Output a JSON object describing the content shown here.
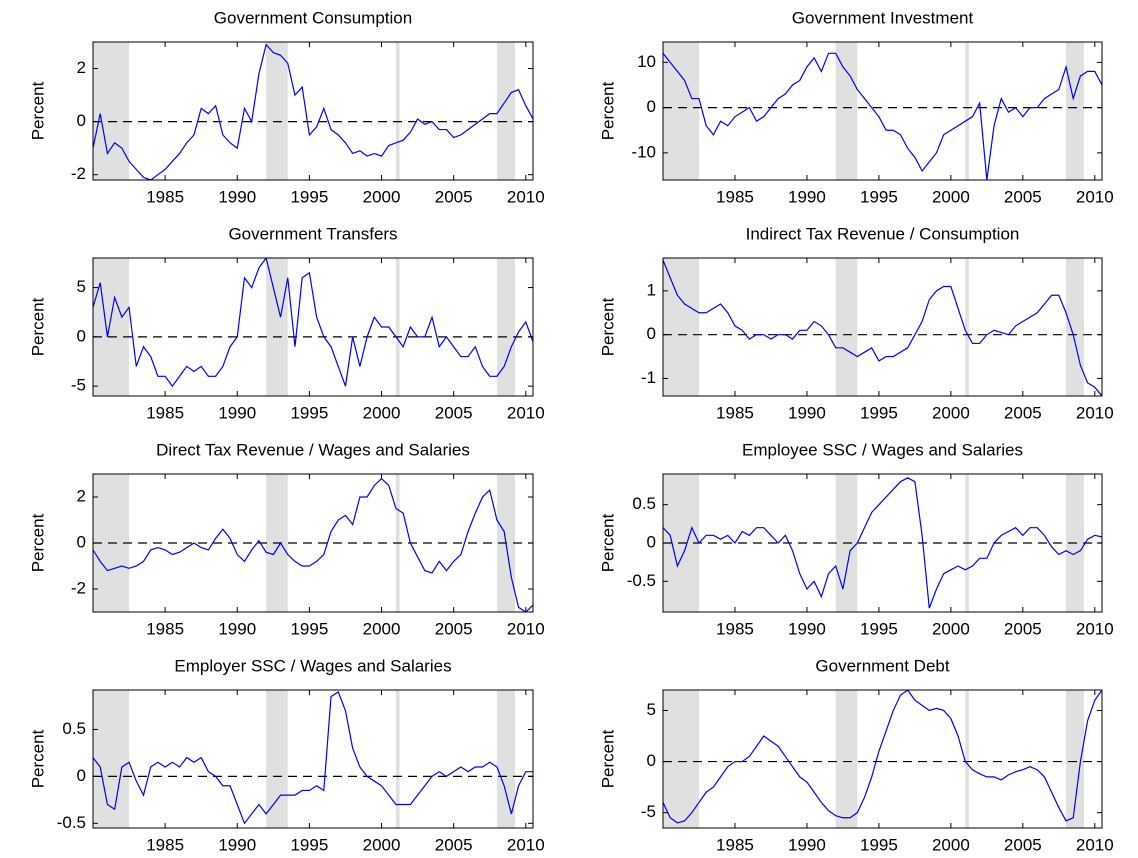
{
  "chart_data": [
    {
      "type": "line",
      "title": "Government Consumption",
      "ylabel": "Percent",
      "color": "#0000ff",
      "shade_color": "#e0e0e0",
      "zero_line": true,
      "xlim": [
        1980,
        2010.5
      ],
      "xticks": [
        1985,
        1990,
        1995,
        2000,
        2005,
        2010
      ],
      "ylim": [
        -2.2,
        3
      ],
      "yticks": [
        -2,
        0,
        2
      ],
      "shaded_periods": [
        [
          1980,
          1982.5
        ],
        [
          1992,
          1993.5
        ],
        [
          2001,
          2001.25
        ],
        [
          2008,
          2009.25
        ]
      ],
      "x": [
        1980,
        1980.5,
        1981,
        1981.5,
        1982,
        1982.5,
        1983,
        1983.5,
        1984,
        1984.5,
        1985,
        1985.5,
        1986,
        1986.5,
        1987,
        1987.5,
        1988,
        1988.5,
        1989,
        1989.5,
        1990,
        1990.5,
        1991,
        1991.5,
        1992,
        1992.5,
        1993,
        1993.5,
        1994,
        1994.5,
        1995,
        1995.5,
        1996,
        1996.5,
        1997,
        1997.5,
        1998,
        1998.5,
        1999,
        1999.5,
        2000,
        2000.5,
        2001,
        2001.5,
        2002,
        2002.5,
        2003,
        2003.5,
        2004,
        2004.5,
        2005,
        2005.5,
        2006,
        2006.5,
        2007,
        2007.5,
        2008,
        2008.5,
        2009,
        2009.5,
        2010,
        2010.5
      ],
      "values": [
        -1,
        0.3,
        -1.2,
        -0.8,
        -1,
        -1.5,
        -1.8,
        -2.1,
        -2.2,
        -2,
        -1.8,
        -1.5,
        -1.2,
        -0.8,
        -0.5,
        0.5,
        0.3,
        0.6,
        -0.5,
        -0.8,
        -1,
        0.5,
        0,
        1.8,
        2.9,
        2.6,
        2.5,
        2.2,
        1,
        1.3,
        -0.5,
        -0.2,
        0.5,
        -0.3,
        -0.5,
        -0.8,
        -1.2,
        -1.1,
        -1.3,
        -1.2,
        -1.3,
        -0.9,
        -0.8,
        -0.7,
        -0.4,
        0.1,
        -0.1,
        0,
        -0.3,
        -0.3,
        -0.6,
        -0.5,
        -0.3,
        -0.1,
        0.1,
        0.3,
        0.3,
        0.7,
        1.1,
        1.2,
        0.6,
        0.1
      ]
    },
    {
      "type": "line",
      "title": "Government Investment",
      "ylabel": "Percent",
      "color": "#0000ff",
      "shade_color": "#e0e0e0",
      "zero_line": true,
      "xlim": [
        1980,
        2010.5
      ],
      "xticks": [
        1985,
        1990,
        1995,
        2000,
        2005,
        2010
      ],
      "ylim": [
        -16,
        14.5
      ],
      "yticks": [
        -10,
        0,
        10
      ],
      "shaded_periods": [
        [
          1980,
          1982.5
        ],
        [
          1992,
          1993.5
        ],
        [
          2001,
          2001.25
        ],
        [
          2008,
          2009.25
        ]
      ],
      "x": [
        1980,
        1980.5,
        1981,
        1981.5,
        1982,
        1982.5,
        1983,
        1983.5,
        1984,
        1984.5,
        1985,
        1985.5,
        1986,
        1986.5,
        1987,
        1987.5,
        1988,
        1988.5,
        1989,
        1989.5,
        1990,
        1990.5,
        1991,
        1991.5,
        1992,
        1992.5,
        1993,
        1993.5,
        1994,
        1994.5,
        1995,
        1995.5,
        1996,
        1996.5,
        1997,
        1997.5,
        1998,
        1998.5,
        1999,
        1999.5,
        2000,
        2000.5,
        2001,
        2001.5,
        2002,
        2002.5,
        2003,
        2003.5,
        2004,
        2004.5,
        2005,
        2005.5,
        2006,
        2006.5,
        2007,
        2007.5,
        2008,
        2008.5,
        2009,
        2009.5,
        2010,
        2010.5
      ],
      "values": [
        12,
        10,
        8,
        6,
        2,
        2,
        -4,
        -6,
        -3,
        -4,
        -2,
        -1,
        0,
        -3,
        -2,
        0,
        2,
        3,
        5,
        6,
        9,
        11,
        8,
        12,
        12,
        9,
        7,
        4,
        2,
        0,
        -2,
        -5,
        -5,
        -6,
        -9,
        -11,
        -14,
        -12,
        -10,
        -6,
        -5,
        -4,
        -3,
        -2,
        1,
        -16,
        -4,
        2,
        -1,
        0,
        -2,
        0,
        0,
        2,
        3,
        4,
        9,
        2,
        7,
        8,
        8,
        5
      ]
    },
    {
      "type": "line",
      "title": "Government Transfers",
      "ylabel": "Percent",
      "color": "#0000ff",
      "shade_color": "#e0e0e0",
      "zero_line": true,
      "xlim": [
        1980,
        2010.5
      ],
      "xticks": [
        1985,
        1990,
        1995,
        2000,
        2005,
        2010
      ],
      "ylim": [
        -6,
        8
      ],
      "yticks": [
        -5,
        0,
        5
      ],
      "shaded_periods": [
        [
          1980,
          1982.5
        ],
        [
          1992,
          1993.5
        ],
        [
          2001,
          2001.25
        ],
        [
          2008,
          2009.25
        ]
      ],
      "x": [
        1980,
        1980.5,
        1981,
        1981.5,
        1982,
        1982.5,
        1983,
        1983.5,
        1984,
        1984.5,
        1985,
        1985.5,
        1986,
        1986.5,
        1987,
        1987.5,
        1988,
        1988.5,
        1989,
        1989.5,
        1990,
        1990.5,
        1991,
        1991.5,
        1992,
        1992.5,
        1993,
        1993.5,
        1994,
        1994.5,
        1995,
        1995.5,
        1996,
        1996.5,
        1997,
        1997.5,
        1998,
        1998.5,
        1999,
        1999.5,
        2000,
        2000.5,
        2001,
        2001.5,
        2002,
        2002.5,
        2003,
        2003.5,
        2004,
        2004.5,
        2005,
        2005.5,
        2006,
        2006.5,
        2007,
        2007.5,
        2008,
        2008.5,
        2009,
        2009.5,
        2010,
        2010.5
      ],
      "values": [
        3,
        5.5,
        0,
        4,
        2,
        3,
        -3,
        -1,
        -2,
        -4,
        -4,
        -5,
        -4,
        -3,
        -3.5,
        -3,
        -4,
        -4,
        -3,
        -1,
        0,
        6,
        5,
        7,
        8,
        5,
        2,
        6,
        -1,
        6,
        6.5,
        2,
        0,
        -1,
        -3,
        -5,
        0,
        -3,
        0,
        2,
        1,
        1,
        0,
        -1,
        1,
        0,
        0,
        2,
        -1,
        0,
        -1,
        -2,
        -2,
        -1,
        -3,
        -4,
        -4,
        -3,
        -1,
        0.5,
        1.5,
        -0.5
      ]
    },
    {
      "type": "line",
      "title": "Indirect Tax Revenue / Consumption",
      "ylabel": "Percent",
      "color": "#0000ff",
      "shade_color": "#e0e0e0",
      "zero_line": true,
      "xlim": [
        1980,
        2010.5
      ],
      "xticks": [
        1985,
        1990,
        1995,
        2000,
        2005,
        2010
      ],
      "ylim": [
        -1.4,
        1.75
      ],
      "yticks": [
        -1,
        0,
        1
      ],
      "shaded_periods": [
        [
          1980,
          1982.5
        ],
        [
          1992,
          1993.5
        ],
        [
          2001,
          2001.25
        ],
        [
          2008,
          2009.25
        ]
      ],
      "x": [
        1980,
        1980.5,
        1981,
        1981.5,
        1982,
        1982.5,
        1983,
        1983.5,
        1984,
        1984.5,
        1985,
        1985.5,
        1986,
        1986.5,
        1987,
        1987.5,
        1988,
        1988.5,
        1989,
        1989.5,
        1990,
        1990.5,
        1991,
        1991.5,
        1992,
        1992.5,
        1993,
        1993.5,
        1994,
        1994.5,
        1995,
        1995.5,
        1996,
        1996.5,
        1997,
        1997.5,
        1998,
        1998.5,
        1999,
        1999.5,
        2000,
        2000.5,
        2001,
        2001.5,
        2002,
        2002.5,
        2003,
        2003.5,
        2004,
        2004.5,
        2005,
        2005.5,
        2006,
        2006.5,
        2007,
        2007.5,
        2008,
        2008.5,
        2009,
        2009.5,
        2010,
        2010.5
      ],
      "values": [
        1.7,
        1.3,
        0.9,
        0.7,
        0.6,
        0.5,
        0.5,
        0.6,
        0.7,
        0.5,
        0.2,
        0.1,
        -0.1,
        0,
        0,
        -0.1,
        0,
        0,
        -0.1,
        0.1,
        0.1,
        0.3,
        0.2,
        0,
        -0.3,
        -0.3,
        -0.4,
        -0.5,
        -0.4,
        -0.3,
        -0.6,
        -0.5,
        -0.5,
        -0.4,
        -0.3,
        0,
        0.3,
        0.8,
        1,
        1.1,
        1.1,
        0.6,
        0.1,
        -0.2,
        -0.2,
        0,
        0.1,
        0.05,
        0,
        0.2,
        0.3,
        0.4,
        0.5,
        0.7,
        0.9,
        0.9,
        0.5,
        0,
        -0.7,
        -1.1,
        -1.2,
        -1.4
      ]
    },
    {
      "type": "line",
      "title": "Direct Tax Revenue / Wages and Salaries",
      "ylabel": "Percent",
      "color": "#0000ff",
      "shade_color": "#e0e0e0",
      "zero_line": true,
      "xlim": [
        1980,
        2010.5
      ],
      "xticks": [
        1985,
        1990,
        1995,
        2000,
        2005,
        2010
      ],
      "ylim": [
        -3,
        3
      ],
      "yticks": [
        -2,
        0,
        2
      ],
      "shaded_periods": [
        [
          1980,
          1982.5
        ],
        [
          1992,
          1993.5
        ],
        [
          2001,
          2001.25
        ],
        [
          2008,
          2009.25
        ]
      ],
      "x": [
        1980,
        1980.5,
        1981,
        1981.5,
        1982,
        1982.5,
        1983,
        1983.5,
        1984,
        1984.5,
        1985,
        1985.5,
        1986,
        1986.5,
        1987,
        1987.5,
        1988,
        1988.5,
        1989,
        1989.5,
        1990,
        1990.5,
        1991,
        1991.5,
        1992,
        1992.5,
        1993,
        1993.5,
        1994,
        1994.5,
        1995,
        1995.5,
        1996,
        1996.5,
        1997,
        1997.5,
        1998,
        1998.5,
        1999,
        1999.5,
        2000,
        2000.5,
        2001,
        2001.5,
        2002,
        2002.5,
        2003,
        2003.5,
        2004,
        2004.5,
        2005,
        2005.5,
        2006,
        2006.5,
        2007,
        2007.5,
        2008,
        2008.5,
        2009,
        2009.5,
        2010,
        2010.5
      ],
      "values": [
        -0.3,
        -0.8,
        -1.2,
        -1.1,
        -1,
        -1.1,
        -1,
        -0.8,
        -0.3,
        -0.2,
        -0.3,
        -0.5,
        -0.4,
        -0.2,
        0,
        -0.2,
        -0.3,
        0.2,
        0.6,
        0.2,
        -0.5,
        -0.8,
        -0.3,
        0.1,
        -0.4,
        -0.5,
        0,
        -0.5,
        -0.8,
        -1,
        -1,
        -0.8,
        -0.5,
        0.5,
        1,
        1.2,
        0.8,
        2,
        2,
        2.5,
        2.8,
        2.5,
        1.5,
        1.3,
        0,
        -0.6,
        -1.2,
        -1.3,
        -0.8,
        -1.2,
        -0.8,
        -0.5,
        0.5,
        1.3,
        2,
        2.3,
        1,
        0.5,
        -1.5,
        -2.8,
        -3,
        -2.7
      ]
    },
    {
      "type": "line",
      "title": "Employee SSC / Wages and Salaries",
      "ylabel": "Percent",
      "color": "#0000ff",
      "shade_color": "#e0e0e0",
      "zero_line": true,
      "xlim": [
        1980,
        2010.5
      ],
      "xticks": [
        1985,
        1990,
        1995,
        2000,
        2005,
        2010
      ],
      "ylim": [
        -0.9,
        0.9
      ],
      "yticks": [
        -0.5,
        0,
        0.5
      ],
      "shaded_periods": [
        [
          1980,
          1982.5
        ],
        [
          1992,
          1993.5
        ],
        [
          2001,
          2001.25
        ],
        [
          2008,
          2009.25
        ]
      ],
      "x": [
        1980,
        1980.5,
        1981,
        1981.5,
        1982,
        1982.5,
        1983,
        1983.5,
        1984,
        1984.5,
        1985,
        1985.5,
        1986,
        1986.5,
        1987,
        1987.5,
        1988,
        1988.5,
        1989,
        1989.5,
        1990,
        1990.5,
        1991,
        1991.5,
        1992,
        1992.5,
        1993,
        1993.5,
        1994,
        1994.5,
        1995,
        1995.5,
        1996,
        1996.5,
        1997,
        1997.5,
        1998,
        1998.5,
        1999,
        1999.5,
        2000,
        2000.5,
        2001,
        2001.5,
        2002,
        2002.5,
        2003,
        2003.5,
        2004,
        2004.5,
        2005,
        2005.5,
        2006,
        2006.5,
        2007,
        2007.5,
        2008,
        2008.5,
        2009,
        2009.5,
        2010,
        2010.5
      ],
      "values": [
        0.2,
        0.1,
        -0.3,
        -0.1,
        0.2,
        0,
        0.1,
        0.1,
        0.05,
        0.1,
        0,
        0.15,
        0.1,
        0.2,
        0.2,
        0.1,
        0,
        0.1,
        -0.1,
        -0.4,
        -0.6,
        -0.5,
        -0.7,
        -0.4,
        -0.3,
        -0.6,
        -0.1,
        0,
        0.2,
        0.4,
        0.5,
        0.6,
        0.7,
        0.8,
        0.85,
        0.8,
        0.1,
        -0.85,
        -0.6,
        -0.4,
        -0.35,
        -0.3,
        -0.35,
        -0.3,
        -0.2,
        -0.2,
        0,
        0.1,
        0.15,
        0.2,
        0.1,
        0.2,
        0.2,
        0.1,
        -0.05,
        -0.15,
        -0.1,
        -0.15,
        -0.1,
        0.05,
        0.1,
        0.08
      ]
    },
    {
      "type": "line",
      "title": "Employer SSC / Wages and Salaries",
      "ylabel": "Percent",
      "color": "#0000ff",
      "shade_color": "#e0e0e0",
      "zero_line": true,
      "xlim": [
        1980,
        2010.5
      ],
      "xticks": [
        1985,
        1990,
        1995,
        2000,
        2005,
        2010
      ],
      "ylim": [
        -0.55,
        0.92
      ],
      "yticks": [
        -0.5,
        0,
        0.5
      ],
      "shaded_periods": [
        [
          1980,
          1982.5
        ],
        [
          1992,
          1993.5
        ],
        [
          2001,
          2001.25
        ],
        [
          2008,
          2009.25
        ]
      ],
      "x": [
        1980,
        1980.5,
        1981,
        1981.5,
        1982,
        1982.5,
        1983,
        1983.5,
        1984,
        1984.5,
        1985,
        1985.5,
        1986,
        1986.5,
        1987,
        1987.5,
        1988,
        1988.5,
        1989,
        1989.5,
        1990,
        1990.5,
        1991,
        1991.5,
        1992,
        1992.5,
        1993,
        1993.5,
        1994,
        1994.5,
        1995,
        1995.5,
        1996,
        1996.5,
        1997,
        1997.5,
        1998,
        1998.5,
        1999,
        1999.5,
        2000,
        2000.5,
        2001,
        2001.5,
        2002,
        2002.5,
        2003,
        2003.5,
        2004,
        2004.5,
        2005,
        2005.5,
        2006,
        2006.5,
        2007,
        2007.5,
        2008,
        2008.5,
        2009,
        2009.5,
        2010,
        2010.5
      ],
      "values": [
        0.2,
        0.1,
        -0.3,
        -0.35,
        0.1,
        0.15,
        -0.05,
        -0.2,
        0.1,
        0.15,
        0.1,
        0.15,
        0.1,
        0.2,
        0.15,
        0.2,
        0.05,
        0,
        -0.1,
        -0.1,
        -0.3,
        -0.5,
        -0.4,
        -0.3,
        -0.4,
        -0.3,
        -0.2,
        -0.2,
        -0.2,
        -0.15,
        -0.15,
        -0.1,
        -0.15,
        0.85,
        0.9,
        0.7,
        0.3,
        0.1,
        0,
        -0.05,
        -0.1,
        -0.2,
        -0.3,
        -0.3,
        -0.3,
        -0.2,
        -0.1,
        0,
        0.05,
        0,
        0.05,
        0.1,
        0.05,
        0.1,
        0.1,
        0.15,
        0.1,
        -0.1,
        -0.4,
        -0.1,
        0.05,
        0.05
      ]
    },
    {
      "type": "line",
      "title": "Government Debt",
      "ylabel": "Percent",
      "color": "#0000ff",
      "shade_color": "#e0e0e0",
      "zero_line": true,
      "xlim": [
        1980,
        2010.5
      ],
      "xticks": [
        1985,
        1990,
        1995,
        2000,
        2005,
        2010
      ],
      "ylim": [
        -6.5,
        7
      ],
      "yticks": [
        -5,
        0,
        5
      ],
      "shaded_periods": [
        [
          1980,
          1982.5
        ],
        [
          1992,
          1993.5
        ],
        [
          2001,
          2001.25
        ],
        [
          2008,
          2009.25
        ]
      ],
      "x": [
        1980,
        1980.5,
        1981,
        1981.5,
        1982,
        1982.5,
        1983,
        1983.5,
        1984,
        1984.5,
        1985,
        1985.5,
        1986,
        1986.5,
        1987,
        1987.5,
        1988,
        1988.5,
        1989,
        1989.5,
        1990,
        1990.5,
        1991,
        1991.5,
        1992,
        1992.5,
        1993,
        1993.5,
        1994,
        1994.5,
        1995,
        1995.5,
        1996,
        1996.5,
        1997,
        1997.5,
        1998,
        1998.5,
        1999,
        1999.5,
        2000,
        2000.5,
        2001,
        2001.5,
        2002,
        2002.5,
        2003,
        2003.5,
        2004,
        2004.5,
        2005,
        2005.5,
        2006,
        2006.5,
        2007,
        2007.5,
        2008,
        2008.5,
        2009,
        2009.5,
        2010,
        2010.5
      ],
      "values": [
        -4,
        -5.5,
        -6,
        -5.8,
        -5,
        -4,
        -3,
        -2.5,
        -1.5,
        -0.5,
        0,
        0,
        0.5,
        1.5,
        2.5,
        2,
        1.5,
        0.5,
        -0.5,
        -1.5,
        -2,
        -3,
        -4,
        -4.8,
        -5.3,
        -5.5,
        -5.5,
        -5,
        -3.5,
        -1.5,
        1,
        3,
        5,
        6.5,
        7,
        6,
        5.5,
        5,
        5.2,
        5,
        4.2,
        2.5,
        0,
        -0.8,
        -1.2,
        -1.5,
        -1.5,
        -1.8,
        -1.3,
        -1,
        -0.8,
        -0.5,
        -0.8,
        -1.5,
        -3,
        -4.5,
        -5.8,
        -5.5,
        0,
        4,
        6,
        7
      ]
    }
  ]
}
